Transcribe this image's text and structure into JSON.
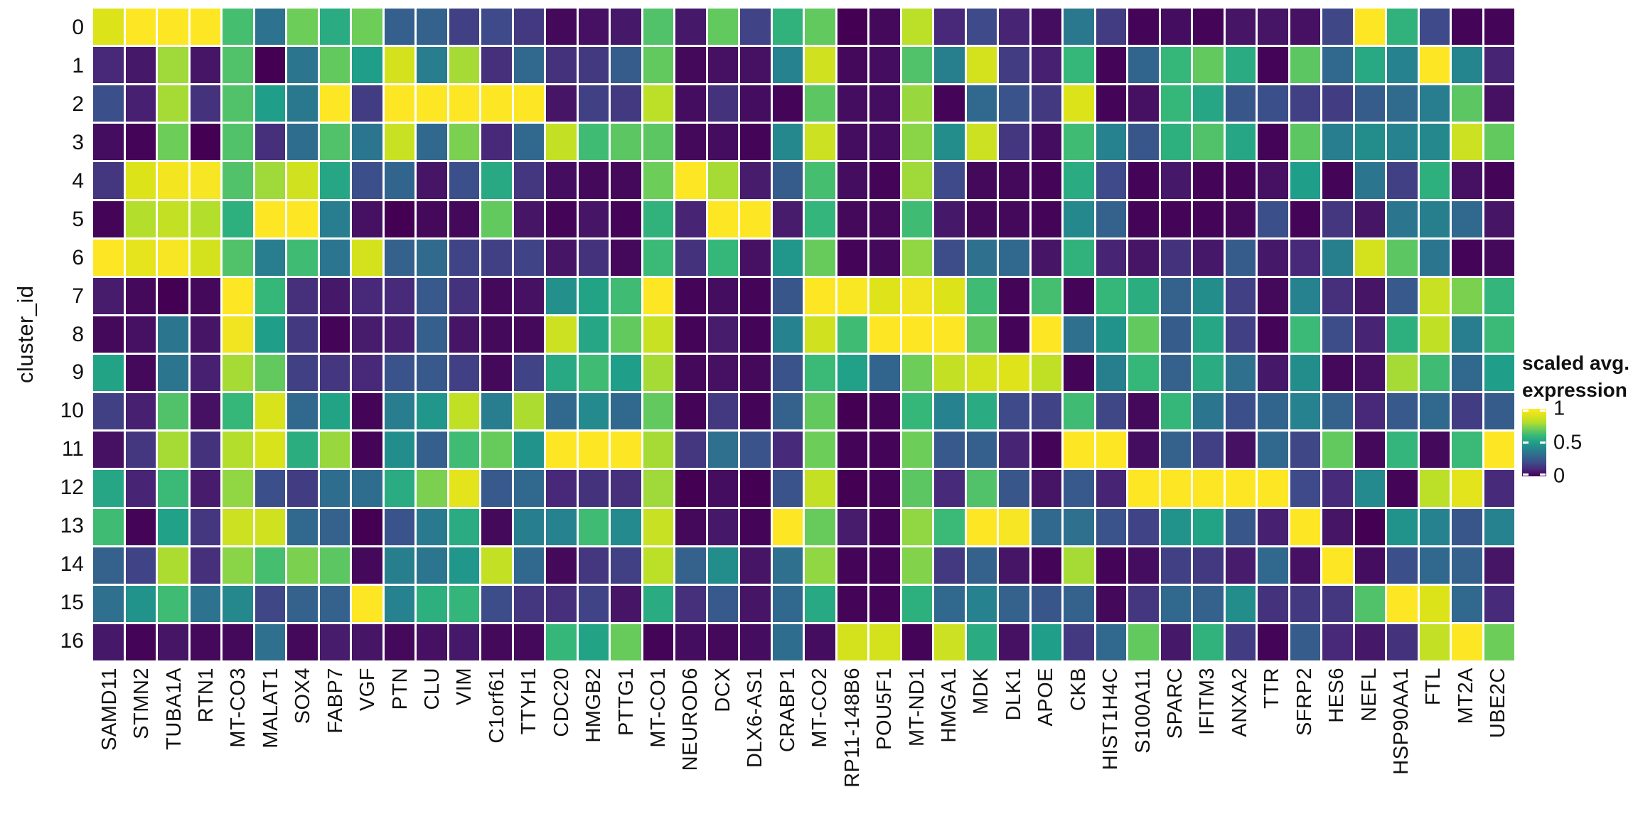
{
  "chart_data": {
    "type": "heatmap",
    "title": "",
    "xlabel": "",
    "ylabel": "cluster_id",
    "background": "#ffffff",
    "tile_border_color": "#ffffff",
    "axis_text_color": "#111111",
    "x_categories": [
      "SAMD11",
      "STMN2",
      "TUBA1A",
      "RTN1",
      "MT-CO3",
      "MALAT1",
      "SOX4",
      "FABP7",
      "VGF",
      "PTN",
      "CLU",
      "VIM",
      "C1orf61",
      "TTYH1",
      "CDC20",
      "HMGB2",
      "PTTG1",
      "MT-CO1",
      "NEUROD6",
      "DCX",
      "DLX6-AS1",
      "CRABP1",
      "MT-CO2",
      "RP11-148B6",
      "POU5F1",
      "MT-ND1",
      "HMGA1",
      "MDK",
      "DLK1",
      "APOE",
      "CKB",
      "HIST1H4C",
      "S100A11",
      "SPARC",
      "IFITM3",
      "ANXA2",
      "TTR",
      "SFRP2",
      "HES6",
      "NEFL",
      "HSP90AA1",
      "FTL",
      "MT2A",
      "UBE2C"
    ],
    "y_categories": [
      "0",
      "1",
      "2",
      "3",
      "4",
      "5",
      "6",
      "7",
      "8",
      "9",
      "10",
      "11",
      "12",
      "13",
      "14",
      "15",
      "16"
    ],
    "value_range": [
      0,
      1
    ],
    "values": [
      [
        0.9,
        1,
        1,
        1,
        0.63,
        0.34,
        0.7,
        0.55,
        0.7,
        0.27,
        0.28,
        0.17,
        0.2,
        0.15,
        0.02,
        0.04,
        0.06,
        0.65,
        0.06,
        0.68,
        0.18,
        0.58,
        0.68,
        0,
        0.02,
        0.82,
        0.1,
        0.2,
        0.09,
        0.03,
        0.36,
        0.16,
        0.01,
        0.03,
        0.01,
        0.05,
        0.05,
        0.04,
        0.19,
        1,
        0.58,
        0.2,
        0.01,
        0.01
      ],
      [
        0.1,
        0.06,
        0.77,
        0.05,
        0.65,
        0,
        0.35,
        0.68,
        0.5,
        0.88,
        0.38,
        0.78,
        0.12,
        0.3,
        0.13,
        0.15,
        0.26,
        0.68,
        0.02,
        0.04,
        0.04,
        0.4,
        0.87,
        0.02,
        0.03,
        0.65,
        0.39,
        0.88,
        0.16,
        0.08,
        0.6,
        0.01,
        0.29,
        0.6,
        0.68,
        0.55,
        0.01,
        0.67,
        0.3,
        0.54,
        0.4,
        1,
        0.41,
        0.09
      ],
      [
        0.22,
        0.08,
        0.78,
        0.13,
        0.65,
        0.5,
        0.36,
        1,
        0.16,
        1,
        1,
        1,
        1,
        1,
        0.05,
        0.17,
        0.15,
        0.82,
        0.03,
        0.13,
        0.03,
        0.01,
        0.67,
        0.03,
        0.03,
        0.76,
        0.01,
        0.3,
        0.23,
        0.15,
        0.9,
        0.01,
        0.04,
        0.6,
        0.53,
        0.24,
        0.22,
        0.17,
        0.16,
        0.26,
        0.31,
        0.38,
        0.67,
        0.04
      ],
      [
        0.03,
        0.01,
        0.7,
        0,
        0.65,
        0.12,
        0.32,
        0.65,
        0.35,
        0.85,
        0.3,
        0.72,
        0.1,
        0.3,
        0.84,
        0.62,
        0.67,
        0.67,
        0.02,
        0.03,
        0.01,
        0.42,
        0.86,
        0.03,
        0.03,
        0.74,
        0.44,
        0.86,
        0.14,
        0.03,
        0.62,
        0.4,
        0.24,
        0.57,
        0.65,
        0.53,
        0.01,
        0.67,
        0.38,
        0.44,
        0.4,
        0.42,
        0.86,
        0.68
      ],
      [
        0.14,
        0.9,
        0.97,
        0.98,
        0.65,
        0.77,
        0.87,
        0.53,
        0.22,
        0.29,
        0.05,
        0.22,
        0.54,
        0.14,
        0.03,
        0.02,
        0.02,
        0.7,
        1,
        0.78,
        0.07,
        0.26,
        0.63,
        0.03,
        0.01,
        0.77,
        0.2,
        0.02,
        0.02,
        0.01,
        0.55,
        0.2,
        0.01,
        0.06,
        0.01,
        0.01,
        0.04,
        0.5,
        0.01,
        0.35,
        0.17,
        0.57,
        0.04,
        0.01
      ],
      [
        0.01,
        0.8,
        0.84,
        0.8,
        0.57,
        1,
        1,
        0.38,
        0.04,
        0,
        0.02,
        0.02,
        0.68,
        0.05,
        0.01,
        0.05,
        0.01,
        0.58,
        0.09,
        1,
        1,
        0.07,
        0.59,
        0.02,
        0.02,
        0.62,
        0.06,
        0.02,
        0.02,
        0.01,
        0.42,
        0.28,
        0.01,
        0.01,
        0.01,
        0.02,
        0.22,
        0.01,
        0.14,
        0.05,
        0.35,
        0.39,
        0.3,
        0.05
      ],
      [
        1,
        0.93,
        0.98,
        0.88,
        0.65,
        0.38,
        0.62,
        0.35,
        0.88,
        0.28,
        0.31,
        0.18,
        0.17,
        0.18,
        0.05,
        0.13,
        0.02,
        0.61,
        0.13,
        0.6,
        0.04,
        0.47,
        0.69,
        0.01,
        0.02,
        0.75,
        0.21,
        0.33,
        0.3,
        0.05,
        0.58,
        0.09,
        0.05,
        0.13,
        0.06,
        0.26,
        0.06,
        0.1,
        0.39,
        0.88,
        0.67,
        0.35,
        0.01,
        0.02
      ],
      [
        0.07,
        0.02,
        0,
        0.02,
        1,
        0.6,
        0.12,
        0.06,
        0.1,
        0.11,
        0.25,
        0.13,
        0.02,
        0.04,
        0.45,
        0.52,
        0.62,
        1,
        0.01,
        0.03,
        0.01,
        0.24,
        1,
        0.99,
        0.91,
        0.96,
        0.9,
        0.62,
        0.01,
        0.63,
        0.01,
        0.6,
        0.56,
        0.28,
        0.44,
        0.17,
        0.02,
        0.4,
        0.12,
        0.05,
        0.25,
        0.85,
        0.72,
        0.59
      ],
      [
        0.02,
        0.04,
        0.35,
        0.05,
        0.96,
        0.5,
        0.15,
        0.01,
        0.07,
        0.08,
        0.27,
        0.05,
        0.02,
        0.02,
        0.86,
        0.53,
        0.68,
        0.85,
        0.01,
        0.07,
        0.01,
        0.4,
        0.87,
        0.62,
        1,
        1,
        1,
        0.67,
        0.01,
        1,
        0.33,
        0.46,
        0.68,
        0.26,
        0.53,
        0.17,
        0.01,
        0.61,
        0.21,
        0.09,
        0.57,
        0.83,
        0.38,
        0.61
      ],
      [
        0.52,
        0.02,
        0.35,
        0.08,
        0.78,
        0.68,
        0.17,
        0.14,
        0.1,
        0.23,
        0.25,
        0.17,
        0.02,
        0.18,
        0.54,
        0.62,
        0.5,
        0.78,
        0.02,
        0.04,
        0.02,
        0.23,
        0.61,
        0.51,
        0.29,
        0.7,
        0.84,
        0.88,
        0.91,
        0.83,
        0.01,
        0.39,
        0.6,
        0.28,
        0.55,
        0.33,
        0.06,
        0.44,
        0.02,
        0.04,
        0.78,
        0.62,
        0.3,
        0.5
      ],
      [
        0.17,
        0.08,
        0.65,
        0.04,
        0.6,
        0.89,
        0.3,
        0.52,
        0.01,
        0.38,
        0.47,
        0.83,
        0.38,
        0.79,
        0.3,
        0.43,
        0.3,
        0.68,
        0.01,
        0.15,
        0.01,
        0.28,
        0.68,
        0,
        0.01,
        0.6,
        0.4,
        0.55,
        0.2,
        0.18,
        0.62,
        0.19,
        0.02,
        0.6,
        0.35,
        0.22,
        0.29,
        0.4,
        0.28,
        0.1,
        0.25,
        0.3,
        0.16,
        0.26
      ],
      [
        0.04,
        0.14,
        0.78,
        0.13,
        0.8,
        0.89,
        0.56,
        0.76,
        0.01,
        0.44,
        0.27,
        0.62,
        0.69,
        0.46,
        1,
        1,
        1,
        0.78,
        0.14,
        0.33,
        0.23,
        0.11,
        0.7,
        0.01,
        0.01,
        0.7,
        0.25,
        0.27,
        0.09,
        0.01,
        1,
        1,
        0.03,
        0.28,
        0.17,
        0.04,
        0.3,
        0.19,
        0.68,
        0.02,
        0.59,
        0.02,
        0.61,
        1
      ],
      [
        0.53,
        0.09,
        0.61,
        0.07,
        0.75,
        0.22,
        0.16,
        0.32,
        0.32,
        0.55,
        0.72,
        0.92,
        0.25,
        0.3,
        0.1,
        0.13,
        0.12,
        0.77,
        0,
        0.03,
        0,
        0.23,
        0.84,
        0,
        0.01,
        0.67,
        0.11,
        0.65,
        0.24,
        0.05,
        0.25,
        0.09,
        1,
        1,
        1,
        1,
        1,
        0.2,
        0.11,
        0.43,
        0.01,
        0.82,
        0.92,
        0.11
      ],
      [
        0.62,
        0.01,
        0.51,
        0.14,
        0.86,
        0.87,
        0.3,
        0.28,
        0,
        0.23,
        0.37,
        0.55,
        0.02,
        0.39,
        0.4,
        0.62,
        0.43,
        0.85,
        0.02,
        0.06,
        0.01,
        1,
        0.69,
        0.07,
        0.01,
        0.75,
        0.61,
        1,
        0.98,
        0.3,
        0.33,
        0.23,
        0.18,
        0.46,
        0.52,
        0.24,
        0.08,
        1,
        0.05,
        0,
        0.46,
        0.4,
        0.24,
        0.4
      ],
      [
        0.28,
        0.18,
        0.79,
        0.12,
        0.74,
        0.63,
        0.72,
        0.67,
        0.02,
        0.39,
        0.35,
        0.47,
        0.84,
        0.3,
        0.02,
        0.14,
        0.17,
        0.82,
        0.28,
        0.44,
        0.05,
        0.33,
        0.75,
        0.01,
        0.01,
        0.73,
        0.15,
        0.28,
        0.05,
        0.01,
        0.78,
        0.01,
        0.03,
        0.17,
        0.15,
        0.07,
        0.3,
        0.04,
        1,
        0.03,
        0.22,
        0.3,
        0.28,
        0.05
      ],
      [
        0.33,
        0.46,
        0.62,
        0.34,
        0.42,
        0.19,
        0.28,
        0.28,
        1,
        0.4,
        0.57,
        0.59,
        0.21,
        0.14,
        0.12,
        0.18,
        0.05,
        0.55,
        0.12,
        0.25,
        0.05,
        0.3,
        0.54,
        0.01,
        0.01,
        0.57,
        0.3,
        0.4,
        0.28,
        0.24,
        0.28,
        0.02,
        0.14,
        0.3,
        0.28,
        0.44,
        0.13,
        0.15,
        0.14,
        0.65,
        1,
        0.9,
        0.3,
        0.11
      ],
      [
        0.06,
        0.01,
        0.05,
        0.02,
        0.02,
        0.33,
        0.02,
        0.07,
        0.05,
        0.02,
        0.04,
        0.06,
        0.02,
        0.02,
        0.6,
        0.52,
        0.69,
        0.01,
        0.03,
        0.02,
        0.03,
        0.32,
        0.03,
        0.88,
        0.88,
        0.01,
        0.86,
        0.55,
        0.04,
        0.5,
        0.15,
        0.3,
        0.68,
        0.06,
        0.58,
        0.16,
        0.01,
        0.26,
        0.1,
        0.06,
        0.13,
        0.84,
        1,
        0.7
      ]
    ],
    "colormap": {
      "name": "viridis",
      "stops": [
        [
          0.0,
          "#440154"
        ],
        [
          0.1,
          "#482878"
        ],
        [
          0.2,
          "#3E4A89"
        ],
        [
          0.3,
          "#31688E"
        ],
        [
          0.4,
          "#26828E"
        ],
        [
          0.5,
          "#1F9E89"
        ],
        [
          0.6,
          "#35B779"
        ],
        [
          0.7,
          "#6DCD59"
        ],
        [
          0.8,
          "#B4DE2C"
        ],
        [
          0.9,
          "#DCE319"
        ],
        [
          1.0,
          "#FDE725"
        ]
      ]
    },
    "legend": {
      "title_lines": [
        "scaled avg.",
        "expression"
      ],
      "position": "right",
      "ticks": [
        {
          "label": "1",
          "value": 1
        },
        {
          "label": "0.5",
          "value": 0.5
        },
        {
          "label": "0",
          "value": 0
        }
      ]
    },
    "grid": "off"
  }
}
